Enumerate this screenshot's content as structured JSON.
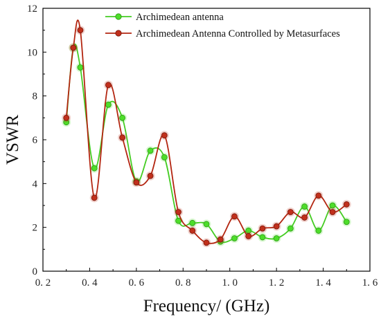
{
  "chart_data": {
    "type": "line",
    "xlabel": "Frequency/ (GHz)",
    "ylabel": "VSWR",
    "xlim": [
      0.2,
      1.6
    ],
    "ylim": [
      0,
      12
    ],
    "xticks": [
      0.2,
      0.4,
      0.6,
      0.8,
      1.0,
      1.2,
      1.4,
      1.6
    ],
    "xtick_labels": [
      "0. 2",
      "0. 4",
      "0. 6",
      "0. 8",
      "1. 0",
      "1. 2",
      "1. 4",
      "1. 6"
    ],
    "yticks": [
      0,
      2,
      4,
      6,
      8,
      10,
      12
    ],
    "ytick_labels": [
      "0",
      "2",
      "4",
      "6",
      "8",
      "10",
      "12"
    ],
    "grid": false,
    "legend_position": "top",
    "series": [
      {
        "name": "Archimedean antenna",
        "color": "#44cc22",
        "marker_color": "#4ddd2a",
        "x": [
          0.3,
          0.33,
          0.36,
          0.42,
          0.48,
          0.54,
          0.6,
          0.66,
          0.72,
          0.78,
          0.84,
          0.9,
          0.96,
          1.02,
          1.08,
          1.14,
          1.2,
          1.26,
          1.32,
          1.38,
          1.44,
          1.5
        ],
        "y": [
          6.8,
          10.2,
          9.3,
          4.7,
          7.6,
          7.0,
          4.1,
          5.5,
          5.2,
          2.3,
          2.2,
          2.15,
          1.35,
          1.5,
          1.85,
          1.55,
          1.5,
          1.95,
          2.95,
          1.85,
          3.0,
          2.25
        ]
      },
      {
        "name": "Archimedean Antenna Controlled by Metasurfaces",
        "color": "#b32510",
        "marker_color": "#c0301c",
        "x": [
          0.3,
          0.33,
          0.36,
          0.42,
          0.48,
          0.54,
          0.6,
          0.66,
          0.72,
          0.78,
          0.84,
          0.9,
          0.96,
          1.02,
          1.08,
          1.14,
          1.2,
          1.26,
          1.32,
          1.38,
          1.44,
          1.5
        ],
        "y": [
          7.0,
          10.2,
          11.0,
          3.35,
          8.5,
          6.1,
          4.05,
          4.35,
          6.2,
          2.7,
          1.85,
          1.3,
          1.45,
          2.5,
          1.6,
          1.95,
          2.05,
          2.7,
          2.45,
          3.45,
          2.7,
          3.05
        ]
      }
    ]
  }
}
